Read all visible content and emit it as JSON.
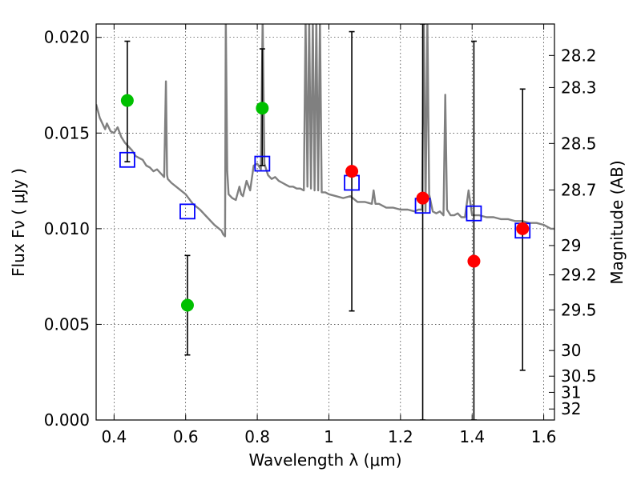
{
  "chart_data": {
    "type": "scatter",
    "xlabel": "Wavelength  λ (μm)",
    "ylabel": "Flux  Fν  ( μJy )",
    "ylabel2": "Magnitude (AB)",
    "xlim": [
      0.35,
      1.63
    ],
    "ylim": [
      0.0,
      0.0207
    ],
    "grid": true,
    "x_ticks": [
      {
        "value": 0.4,
        "label": "0.4"
      },
      {
        "value": 0.6,
        "label": "0.6"
      },
      {
        "value": 0.8,
        "label": "0.8"
      },
      {
        "value": 1.0,
        "label": "1"
      },
      {
        "value": 1.2,
        "label": "1.2"
      },
      {
        "value": 1.4,
        "label": "1.4"
      },
      {
        "value": 1.6,
        "label": "1.6"
      }
    ],
    "y_ticks": [
      {
        "value": 0.0,
        "label": "0.000"
      },
      {
        "value": 0.005,
        "label": "0.005"
      },
      {
        "value": 0.01,
        "label": "0.010"
      },
      {
        "value": 0.015,
        "label": "0.015"
      },
      {
        "value": 0.02,
        "label": "0.020"
      }
    ],
    "mag_ticks": [
      {
        "value": 28.2,
        "label": "28.2"
      },
      {
        "value": 28.3,
        "label": "28.3"
      },
      {
        "value": 28.5,
        "label": "28.5"
      },
      {
        "value": 28.7,
        "label": "28.7"
      },
      {
        "value": 29.0,
        "label": "29"
      },
      {
        "value": 29.2,
        "label": "29.2"
      },
      {
        "value": 29.5,
        "label": "29.5"
      },
      {
        "value": 30.0,
        "label": "30"
      },
      {
        "value": 30.5,
        "label": "30.5"
      },
      {
        "value": 31.0,
        "label": "31"
      },
      {
        "value": 32.0,
        "label": "32"
      }
    ],
    "series": [
      {
        "kind": "model_spectrum",
        "color": "#808080",
        "x": [
          0.35,
          0.36,
          0.37,
          0.375,
          0.38,
          0.39,
          0.4,
          0.41,
          0.42,
          0.43,
          0.44,
          0.45,
          0.46,
          0.47,
          0.48,
          0.49,
          0.5,
          0.51,
          0.52,
          0.53,
          0.54,
          0.545,
          0.548,
          0.55,
          0.56,
          0.58,
          0.6,
          0.62,
          0.64,
          0.66,
          0.68,
          0.7,
          0.705,
          0.71,
          0.712,
          0.716,
          0.72,
          0.73,
          0.74,
          0.75,
          0.755,
          0.76,
          0.77,
          0.78,
          0.79,
          0.8,
          0.81,
          0.815,
          0.82,
          0.83,
          0.84,
          0.85,
          0.86,
          0.87,
          0.88,
          0.89,
          0.9,
          0.91,
          0.92,
          0.93,
          0.935,
          0.94,
          0.945,
          0.95,
          0.955,
          0.96,
          0.965,
          0.97,
          0.975,
          0.98,
          0.99,
          1.0,
          1.02,
          1.04,
          1.06,
          1.08,
          1.1,
          1.12,
          1.125,
          1.13,
          1.14,
          1.16,
          1.18,
          1.2,
          1.22,
          1.24,
          1.25,
          1.26,
          1.265,
          1.27,
          1.275,
          1.28,
          1.29,
          1.3,
          1.31,
          1.32,
          1.325,
          1.33,
          1.34,
          1.35,
          1.36,
          1.37,
          1.38,
          1.39,
          1.4,
          1.42,
          1.44,
          1.46,
          1.48,
          1.5,
          1.52,
          1.54,
          1.56,
          1.58,
          1.6,
          1.62,
          1.63
        ],
        "y": [
          0.0165,
          0.0158,
          0.0154,
          0.0152,
          0.0155,
          0.0151,
          0.015,
          0.0153,
          0.0148,
          0.0145,
          0.0143,
          0.0141,
          0.0138,
          0.0137,
          0.0136,
          0.0133,
          0.0132,
          0.013,
          0.0131,
          0.0129,
          0.0127,
          0.0177,
          0.0128,
          0.0126,
          0.0124,
          0.0121,
          0.0118,
          0.0113,
          0.011,
          0.0106,
          0.0102,
          0.0099,
          0.0097,
          0.0096,
          0.021,
          0.013,
          0.0118,
          0.0116,
          0.0115,
          0.0122,
          0.0118,
          0.0117,
          0.0125,
          0.012,
          0.0133,
          0.0134,
          0.0131,
          0.021,
          0.0134,
          0.0128,
          0.0126,
          0.0127,
          0.0125,
          0.0124,
          0.0123,
          0.0122,
          0.0122,
          0.0121,
          0.0121,
          0.012,
          0.021,
          0.0122,
          0.021,
          0.0121,
          0.021,
          0.012,
          0.021,
          0.012,
          0.021,
          0.0119,
          0.0119,
          0.0118,
          0.0117,
          0.0116,
          0.0117,
          0.0114,
          0.0114,
          0.0113,
          0.012,
          0.0113,
          0.0113,
          0.0111,
          0.0111,
          0.011,
          0.011,
          0.0109,
          0.011,
          0.011,
          0.021,
          0.0109,
          0.021,
          0.0118,
          0.0109,
          0.0108,
          0.0109,
          0.0107,
          0.017,
          0.011,
          0.0107,
          0.0107,
          0.0108,
          0.0106,
          0.0106,
          0.012,
          0.0107,
          0.0107,
          0.0106,
          0.0106,
          0.0105,
          0.0105,
          0.0104,
          0.0104,
          0.0103,
          0.0103,
          0.0102,
          0.01,
          0.01
        ]
      },
      {
        "kind": "model_photometry",
        "marker": "open-square",
        "color": "#0000ff",
        "x": [
          0.437,
          0.605,
          0.814,
          1.064,
          1.262,
          1.405,
          1.541
        ],
        "y": [
          0.0136,
          0.0109,
          0.0134,
          0.0124,
          0.0112,
          0.0108,
          0.0099
        ]
      },
      {
        "kind": "observed_upper",
        "marker": "filled-circle",
        "color": "#00c000",
        "x": [
          0.437,
          0.605,
          0.814
        ],
        "y": [
          0.0167,
          0.006,
          0.0163
        ],
        "yerr_low": [
          0.0135,
          0.0034,
          0.0133
        ],
        "yerr_high": [
          0.0198,
          0.0086,
          0.0194
        ]
      },
      {
        "kind": "observed_ir",
        "marker": "filled-circle",
        "color": "#ff0000",
        "x": [
          1.064,
          1.262,
          1.405,
          1.541
        ],
        "y": [
          0.013,
          0.0116,
          0.0083,
          0.01
        ],
        "yerr_low": [
          0.0057,
          0.0,
          0.0,
          0.0026
        ],
        "yerr_high": [
          0.0203,
          0.0207,
          0.0198,
          0.0173
        ]
      }
    ]
  }
}
